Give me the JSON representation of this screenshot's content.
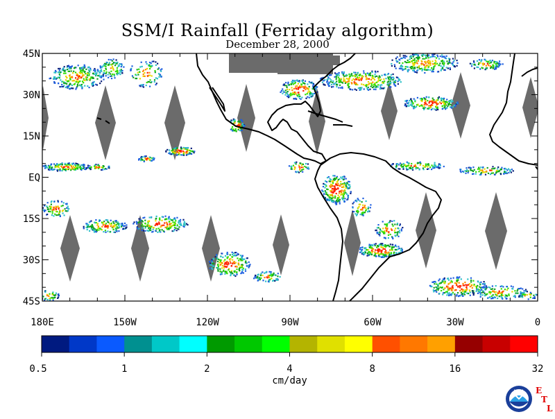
{
  "title": "SSM/I Rainfall (Ferriday algorithm)",
  "subtitle": "December 28, 2000",
  "map": {
    "lon_ticks": [
      {
        "lon": -180,
        "label": "180E"
      },
      {
        "lon": -150,
        "label": "150W"
      },
      {
        "lon": -120,
        "label": "120W"
      },
      {
        "lon": -90,
        "label": "90W"
      },
      {
        "lon": -60,
        "label": "60W"
      },
      {
        "lon": -30,
        "label": "30W"
      },
      {
        "lon": 0,
        "label": "0"
      }
    ],
    "lat_ticks": [
      {
        "lat": 45,
        "label": "45N"
      },
      {
        "lat": 30,
        "label": "30N"
      },
      {
        "lat": 15,
        "label": "15N"
      },
      {
        "lat": 0,
        "label": "EQ"
      },
      {
        "lat": -15,
        "label": "15S"
      },
      {
        "lat": -30,
        "label": "30S"
      },
      {
        "lat": -45,
        "label": "45S"
      }
    ],
    "lon_range": [
      -180,
      0
    ],
    "lat_range": [
      -45,
      45
    ],
    "no_data_color": "#6b6b6b",
    "rain_colors": [
      "#0a1f7a",
      "#1f5fe0",
      "#2ec0c8",
      "#10a020",
      "#33e000",
      "#e8d800",
      "#ff8800",
      "#ff2000"
    ]
  },
  "colorbar": {
    "colors": [
      "#001a80",
      "#0038c8",
      "#0a5aff",
      "#009090",
      "#00c8c8",
      "#00ffff",
      "#009a00",
      "#00c800",
      "#00ff00",
      "#b4b400",
      "#e0e000",
      "#ffff00",
      "#ff5000",
      "#ff7800",
      "#ffa000",
      "#960000",
      "#c80000",
      "#ff0000"
    ],
    "tick_labels": [
      "0.5",
      "1",
      "2",
      "4",
      "8",
      "16",
      "32"
    ],
    "units": "cm/day"
  },
  "logo": {
    "ring_text": "NOAA",
    "letters": [
      "E",
      "T",
      "L"
    ]
  }
}
